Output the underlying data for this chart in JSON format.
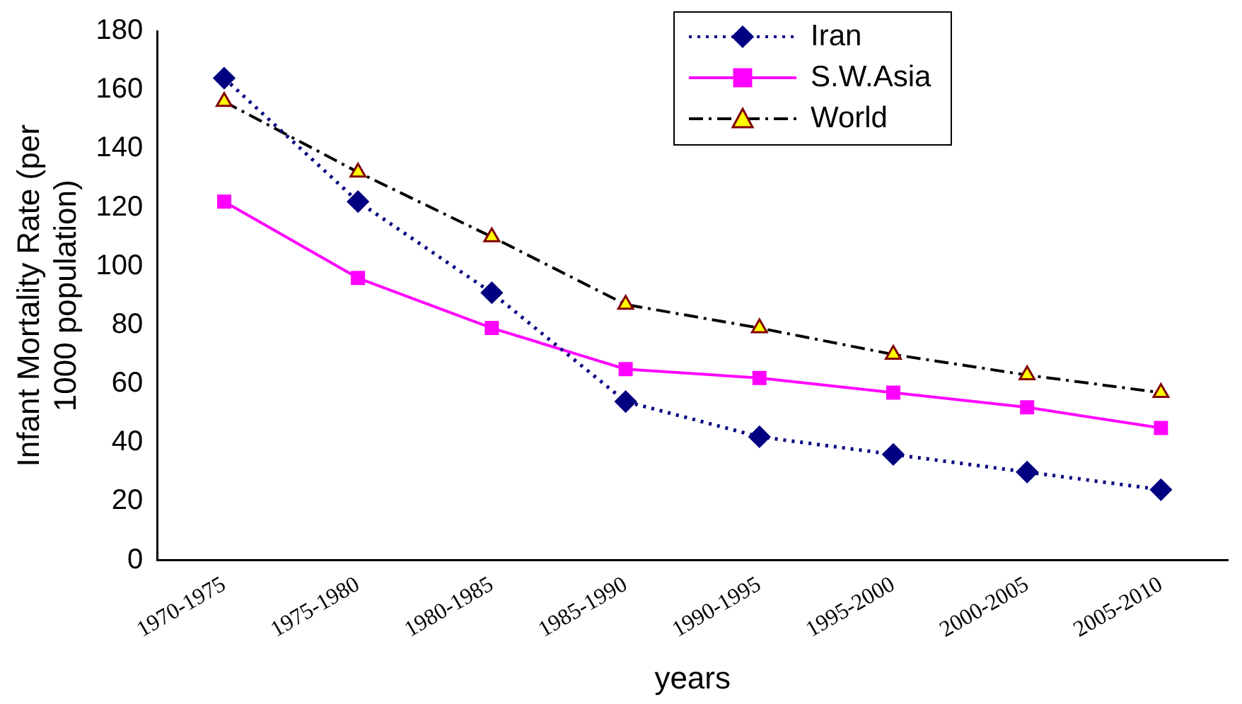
{
  "chart_data": {
    "type": "line",
    "xlabel": "years",
    "ylabel": "Infant Mortality Rate (per 1000 population)",
    "categories": [
      "1970-1975",
      "1975-1980",
      "1980-1985",
      "1985-1990",
      "1990-1995",
      "1995-2000",
      "2000-2005",
      "2005-2010"
    ],
    "series": [
      {
        "name": "Iran",
        "color": "#000080",
        "marker": "diamond",
        "line_style": "dotted",
        "values": [
          164,
          122,
          91,
          54,
          42,
          36,
          30,
          24
        ]
      },
      {
        "name": "S.W.Asia",
        "color": "#ff00ff",
        "marker": "square",
        "line_style": "solid",
        "values": [
          122,
          96,
          79,
          65,
          62,
          57,
          52,
          45
        ]
      },
      {
        "name": "World",
        "color": "#000000",
        "marker": "triangle",
        "line_style": "dashed",
        "values": [
          156,
          132,
          110,
          87,
          79,
          70,
          63,
          57
        ]
      }
    ],
    "ylim": [
      0,
      180
    ],
    "yticks": [
      0,
      20,
      40,
      60,
      80,
      100,
      120,
      140,
      160,
      180
    ],
    "grid": false,
    "legend": "top right"
  }
}
